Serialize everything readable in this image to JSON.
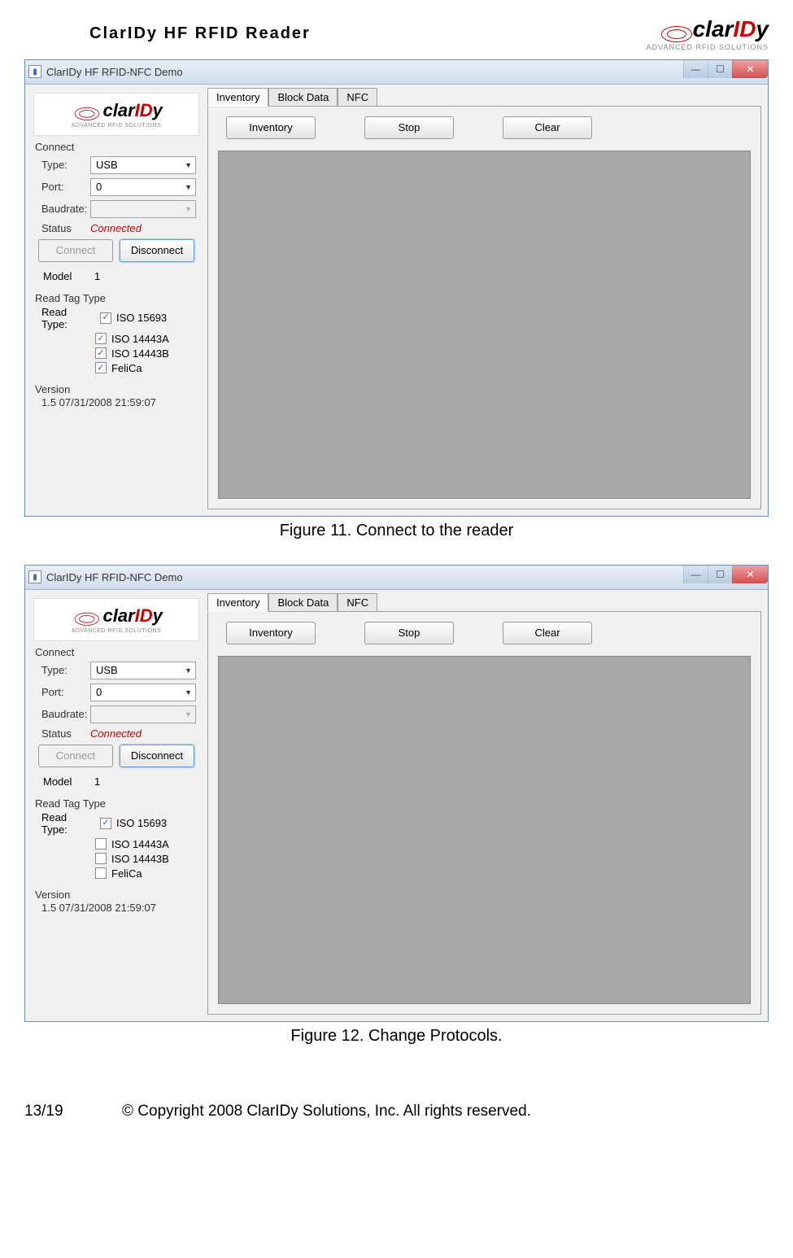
{
  "header": {
    "doc_title": "ClarIDy  HF  RFID  Reader",
    "logo_main_pre": "clar",
    "logo_main_red": "ID",
    "logo_main_post": "y",
    "logo_sub": "ADVANCED RFID SOLUTIONS"
  },
  "screenshot1": {
    "titlebar": "ClarIDy HF RFID-NFC Demo",
    "connect": {
      "group": "Connect",
      "type_label": "Type:",
      "type_value": "USB",
      "port_label": "Port:",
      "port_value": "0",
      "baud_label": "Baudrate:",
      "baud_value": "",
      "status_label": "Status",
      "status_value": "Connected",
      "connect_btn": "Connect",
      "disconnect_btn": "Disconnect",
      "model_label": "Model",
      "model_value": "1"
    },
    "readtag": {
      "group": "Read Tag Type",
      "label": "Read Type:",
      "items": [
        {
          "label": "ISO 15693",
          "checked": true
        },
        {
          "label": "ISO 14443A",
          "checked": true
        },
        {
          "label": "ISO 14443B",
          "checked": true
        },
        {
          "label": "FeliCa",
          "checked": true
        }
      ]
    },
    "version": {
      "group": "Version",
      "text": "1.5 07/31/2008 21:59:07"
    },
    "tabs": [
      "Inventory",
      "Block Data",
      "NFC"
    ],
    "actions": {
      "inventory": "Inventory",
      "stop": "Stop",
      "clear": "Clear"
    },
    "caption": "Figure 11. Connect to the reader"
  },
  "screenshot2": {
    "titlebar": "ClarIDy HF RFID-NFC Demo",
    "connect": {
      "group": "Connect",
      "type_label": "Type:",
      "type_value": "USB",
      "port_label": "Port:",
      "port_value": "0",
      "baud_label": "Baudrate:",
      "baud_value": "",
      "status_label": "Status",
      "status_value": "Connected",
      "connect_btn": "Connect",
      "disconnect_btn": "Disconnect",
      "model_label": "Model",
      "model_value": "1"
    },
    "readtag": {
      "group": "Read Tag Type",
      "label": "Read Type:",
      "items": [
        {
          "label": "ISO 15693",
          "checked": true
        },
        {
          "label": "ISO 14443A",
          "checked": false
        },
        {
          "label": "ISO 14443B",
          "checked": false
        },
        {
          "label": "FeliCa",
          "checked": false
        }
      ]
    },
    "version": {
      "group": "Version",
      "text": "1.5 07/31/2008 21:59:07"
    },
    "tabs": [
      "Inventory",
      "Block Data",
      "NFC"
    ],
    "actions": {
      "inventory": "Inventory",
      "stop": "Stop",
      "clear": "Clear"
    },
    "caption": "Figure 12. Change Protocols."
  },
  "footer": {
    "page": "13/19",
    "copyright": "© Copyright 2008 ClarIDy Solutions, Inc. All rights reserved."
  },
  "colors": {
    "status_red": "#cc0000",
    "titlebar_grad_top": "#e8f0f8",
    "titlebar_grad_bot": "#d0dce8",
    "close_red": "#d05050",
    "data_area_bg": "#a8a8a8"
  }
}
